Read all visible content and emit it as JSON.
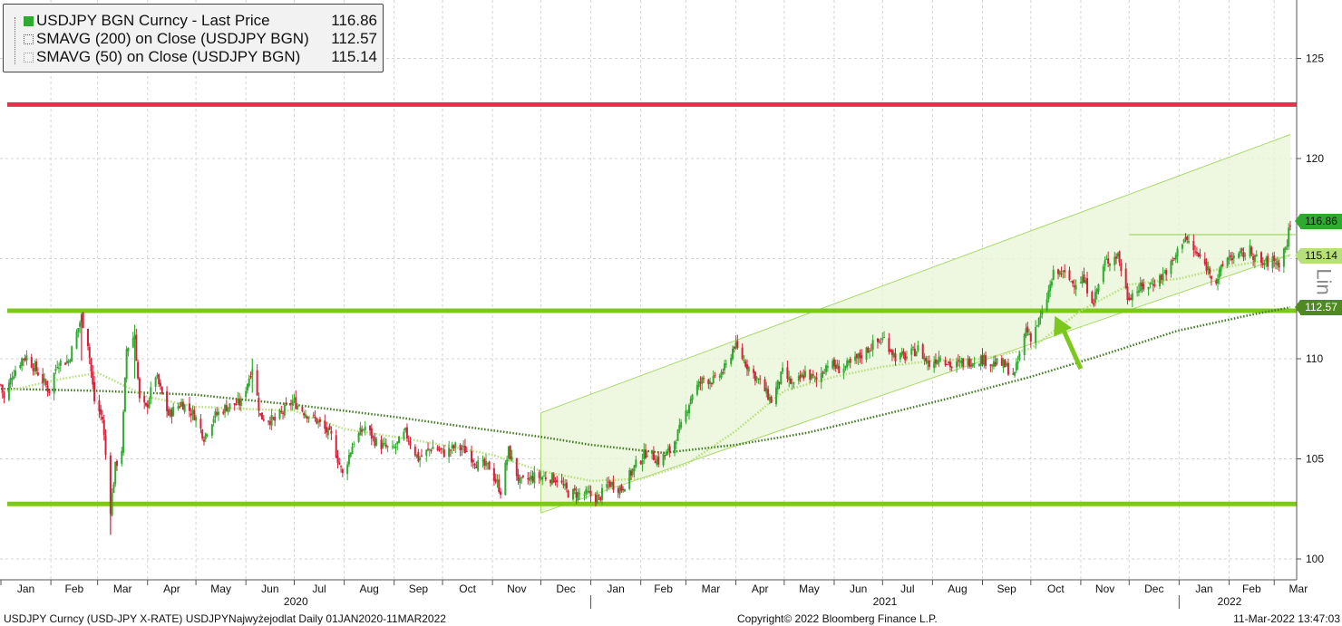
{
  "legend": {
    "rows": [
      {
        "name": "USDJPY BGN Curncy  - Last Price",
        "value": "116.86",
        "swatch": "filled",
        "color": "#2eaa2e"
      },
      {
        "name": "SMAVG (200)  on Close (USDJPY BGN)",
        "value": "112.57",
        "swatch": "dotted",
        "color": "#3f7a1f"
      },
      {
        "name": "SMAVG (50)  on Close (USDJPY BGN)",
        "value": "115.14",
        "swatch": "dotted",
        "color": "#b6e07a"
      }
    ]
  },
  "price_tags": [
    {
      "label": "116.86",
      "color": "#2eaa2e",
      "price": 116.86
    },
    {
      "label": "115.14",
      "color": "#b6e07a",
      "price": 115.14
    },
    {
      "label": "112.57",
      "color": "#4e8a1f",
      "price": 112.57
    }
  ],
  "footer": {
    "left": "USDJPY Curncy (USD-JPY X-RATE) USDJPYNajwyżejodlat  Daily 01JAN2020-11MAR2022",
    "center": "Copyright© 2022 Bloomberg Finance L.P.",
    "right": "11-Mar-2022 13:47:03"
  },
  "side_label": "Lin",
  "chart_data": {
    "type": "candlestick",
    "title": "",
    "xlabel": "",
    "ylabel": "",
    "ylim": [
      99.0,
      127.5
    ],
    "y_ticks": [
      100,
      105,
      110,
      115,
      120,
      125
    ],
    "x_month_labels": [
      "Jan",
      "Feb",
      "Mar",
      "Apr",
      "May",
      "Jun",
      "Jul",
      "Aug",
      "Sep",
      "Oct",
      "Nov",
      "Dec",
      "Jan",
      "Feb",
      "Mar",
      "Apr",
      "May",
      "Jun",
      "Jul",
      "Aug",
      "Sep",
      "Oct",
      "Nov",
      "Dec",
      "Jan",
      "Feb",
      "Mar"
    ],
    "x_year_labels": [
      "2020",
      "2021",
      "2022"
    ],
    "grid": true,
    "series": [
      {
        "name": "USDJPY BGN Curncy  - Last Price",
        "kind": "close_path",
        "color": "#2eaa2e",
        "points": [
          [
            "2020-01-01",
            108.7
          ],
          [
            "2020-01-03",
            108.0
          ],
          [
            "2020-01-08",
            109.2
          ],
          [
            "2020-01-14",
            110.0
          ],
          [
            "2020-01-17",
            110.1
          ],
          [
            "2020-01-24",
            109.3
          ],
          [
            "2020-01-31",
            108.4
          ],
          [
            "2020-02-05",
            109.8
          ],
          [
            "2020-02-12",
            109.9
          ],
          [
            "2020-02-20",
            112.1
          ],
          [
            "2020-02-24",
            110.8
          ],
          [
            "2020-02-28",
            107.9
          ],
          [
            "2020-03-04",
            107.0
          ],
          [
            "2020-03-09",
            102.5
          ],
          [
            "2020-03-12",
            104.6
          ],
          [
            "2020-03-16",
            105.5
          ],
          [
            "2020-03-19",
            110.5
          ],
          [
            "2020-03-24",
            111.2
          ],
          [
            "2020-03-27",
            107.9
          ],
          [
            "2020-03-31",
            107.5
          ],
          [
            "2020-04-06",
            109.2
          ],
          [
            "2020-04-14",
            107.2
          ],
          [
            "2020-04-22",
            107.8
          ],
          [
            "2020-04-30",
            107.2
          ],
          [
            "2020-05-06",
            106.1
          ],
          [
            "2020-05-12",
            107.1
          ],
          [
            "2020-05-20",
            107.6
          ],
          [
            "2020-05-29",
            107.8
          ],
          [
            "2020-06-05",
            109.6
          ],
          [
            "2020-06-10",
            107.1
          ],
          [
            "2020-06-19",
            106.9
          ],
          [
            "2020-06-30",
            107.9
          ],
          [
            "2020-07-08",
            107.3
          ],
          [
            "2020-07-15",
            106.9
          ],
          [
            "2020-07-24",
            106.1
          ],
          [
            "2020-07-31",
            104.2
          ],
          [
            "2020-08-07",
            105.9
          ],
          [
            "2020-08-14",
            106.6
          ],
          [
            "2020-08-21",
            105.8
          ],
          [
            "2020-08-31",
            105.4
          ],
          [
            "2020-09-08",
            106.3
          ],
          [
            "2020-09-16",
            105.0
          ],
          [
            "2020-09-25",
            105.6
          ],
          [
            "2020-10-02",
            105.3
          ],
          [
            "2020-10-09",
            105.6
          ],
          [
            "2020-10-16",
            105.4
          ],
          [
            "2020-10-23",
            104.7
          ],
          [
            "2020-10-30",
            104.6
          ],
          [
            "2020-11-06",
            103.4
          ],
          [
            "2020-11-11",
            105.4
          ],
          [
            "2020-11-18",
            103.8
          ],
          [
            "2020-11-27",
            104.1
          ],
          [
            "2020-12-04",
            104.1
          ],
          [
            "2020-12-11",
            104.0
          ],
          [
            "2020-12-18",
            103.3
          ],
          [
            "2020-12-31",
            103.2
          ],
          [
            "2021-01-06",
            103.0
          ],
          [
            "2021-01-12",
            103.8
          ],
          [
            "2021-01-20",
            103.5
          ],
          [
            "2021-01-29",
            104.7
          ],
          [
            "2021-02-05",
            105.4
          ],
          [
            "2021-02-12",
            104.9
          ],
          [
            "2021-02-19",
            105.4
          ],
          [
            "2021-02-26",
            106.6
          ],
          [
            "2021-03-05",
            108.3
          ],
          [
            "2021-03-12",
            109.0
          ],
          [
            "2021-03-19",
            108.9
          ],
          [
            "2021-03-26",
            109.6
          ],
          [
            "2021-03-31",
            110.7
          ],
          [
            "2021-04-07",
            109.8
          ],
          [
            "2021-04-16",
            108.8
          ],
          [
            "2021-04-23",
            107.9
          ],
          [
            "2021-04-30",
            109.3
          ],
          [
            "2021-05-07",
            108.6
          ],
          [
            "2021-05-14",
            109.3
          ],
          [
            "2021-05-21",
            108.9
          ],
          [
            "2021-05-28",
            109.8
          ],
          [
            "2021-06-04",
            109.5
          ],
          [
            "2021-06-11",
            109.7
          ],
          [
            "2021-06-18",
            110.2
          ],
          [
            "2021-06-25",
            110.7
          ],
          [
            "2021-07-02",
            111.0
          ],
          [
            "2021-07-09",
            110.1
          ],
          [
            "2021-07-16",
            110.1
          ],
          [
            "2021-07-23",
            110.5
          ],
          [
            "2021-07-30",
            109.7
          ],
          [
            "2021-08-06",
            110.2
          ],
          [
            "2021-08-13",
            109.6
          ],
          [
            "2021-08-20",
            109.8
          ],
          [
            "2021-08-31",
            110.0
          ],
          [
            "2021-09-07",
            109.8
          ],
          [
            "2021-09-14",
            109.7
          ],
          [
            "2021-09-21",
            109.2
          ],
          [
            "2021-09-28",
            111.5
          ],
          [
            "2021-10-01",
            111.1
          ],
          [
            "2021-10-08",
            112.2
          ],
          [
            "2021-10-15",
            114.2
          ],
          [
            "2021-10-20",
            114.3
          ],
          [
            "2021-10-27",
            113.8
          ],
          [
            "2021-11-02",
            114.0
          ],
          [
            "2021-11-09",
            112.9
          ],
          [
            "2021-11-16",
            114.8
          ],
          [
            "2021-11-24",
            115.2
          ],
          [
            "2021-11-30",
            113.1
          ],
          [
            "2021-12-07",
            113.5
          ],
          [
            "2021-12-14",
            113.7
          ],
          [
            "2021-12-21",
            114.1
          ],
          [
            "2021-12-28",
            114.8
          ],
          [
            "2022-01-04",
            116.1
          ],
          [
            "2022-01-11",
            115.3
          ],
          [
            "2022-01-18",
            114.6
          ],
          [
            "2022-01-24",
            113.9
          ],
          [
            "2022-01-31",
            115.1
          ],
          [
            "2022-02-07",
            115.1
          ],
          [
            "2022-02-14",
            115.4
          ],
          [
            "2022-02-21",
            114.7
          ],
          [
            "2022-02-28",
            114.9
          ],
          [
            "2022-03-04",
            114.8
          ],
          [
            "2022-03-09",
            115.8
          ],
          [
            "2022-03-11",
            116.86
          ]
        ]
      },
      {
        "name": "SMAVG (200)  on Close (USDJPY BGN)",
        "kind": "dotted_line",
        "color": "#3f7a1f",
        "points": [
          [
            "2020-01-01",
            108.5
          ],
          [
            "2020-03-01",
            108.4
          ],
          [
            "2020-05-01",
            108.2
          ],
          [
            "2020-07-01",
            107.7
          ],
          [
            "2020-09-01",
            107.1
          ],
          [
            "2020-10-15",
            106.6
          ],
          [
            "2020-12-01",
            106.1
          ],
          [
            "2021-01-01",
            105.7
          ],
          [
            "2021-02-15",
            105.3
          ],
          [
            "2021-04-01",
            105.7
          ],
          [
            "2021-05-15",
            106.3
          ],
          [
            "2021-07-01",
            107.2
          ],
          [
            "2021-08-15",
            108.1
          ],
          [
            "2021-10-01",
            109.1
          ],
          [
            "2021-11-15",
            110.2
          ],
          [
            "2021-12-31",
            111.4
          ],
          [
            "2022-02-15",
            112.2
          ],
          [
            "2022-03-11",
            112.57
          ]
        ]
      },
      {
        "name": "SMAVG (50)  on Close (USDJPY BGN)",
        "kind": "dotted_line",
        "color": "#b6e07a",
        "points": [
          [
            "2020-01-01",
            108.3
          ],
          [
            "2020-02-01",
            108.9
          ],
          [
            "2020-03-01",
            109.3
          ],
          [
            "2020-04-01",
            108.1
          ],
          [
            "2020-05-01",
            107.6
          ],
          [
            "2020-06-01",
            107.5
          ],
          [
            "2020-07-01",
            107.4
          ],
          [
            "2020-08-01",
            106.5
          ],
          [
            "2020-09-01",
            106.1
          ],
          [
            "2020-10-01",
            105.7
          ],
          [
            "2020-11-01",
            105.2
          ],
          [
            "2020-12-01",
            104.4
          ],
          [
            "2021-01-01",
            103.9
          ],
          [
            "2021-02-01",
            104.0
          ],
          [
            "2021-03-01",
            104.7
          ],
          [
            "2021-04-01",
            106.4
          ],
          [
            "2021-05-01",
            108.4
          ],
          [
            "2021-06-01",
            109.1
          ],
          [
            "2021-07-01",
            109.6
          ],
          [
            "2021-08-01",
            109.9
          ],
          [
            "2021-09-01",
            110.0
          ],
          [
            "2021-10-01",
            110.5
          ],
          [
            "2021-11-01",
            112.4
          ],
          [
            "2021-12-01",
            113.7
          ],
          [
            "2022-01-01",
            114.0
          ],
          [
            "2022-02-01",
            114.6
          ],
          [
            "2022-03-11",
            115.14
          ]
        ]
      }
    ],
    "horizontal_lines": [
      {
        "price": 122.7,
        "color": "#e8304e",
        "role": "resistance"
      },
      {
        "price": 112.4,
        "color": "#7cc81d",
        "role": "breakout level"
      },
      {
        "price": 102.75,
        "color": "#7cc81d",
        "role": "support"
      }
    ],
    "channel": {
      "lower": [
        [
          "2020-12-01",
          102.3
        ],
        [
          "2022-03-11",
          115.2
        ]
      ],
      "upper": [
        [
          "2020-12-01",
          107.3
        ],
        [
          "2022-03-11",
          121.2
        ]
      ],
      "color": "#a8d96a"
    },
    "resistance_segment": {
      "from": "2021-12-01",
      "to": "2022-03-11",
      "price": 116.2
    },
    "arrow": {
      "from": [
        "2021-11-01",
        109.5
      ],
      "to": [
        "2021-10-08",
        112.0
      ],
      "color": "#7cc81d"
    }
  }
}
